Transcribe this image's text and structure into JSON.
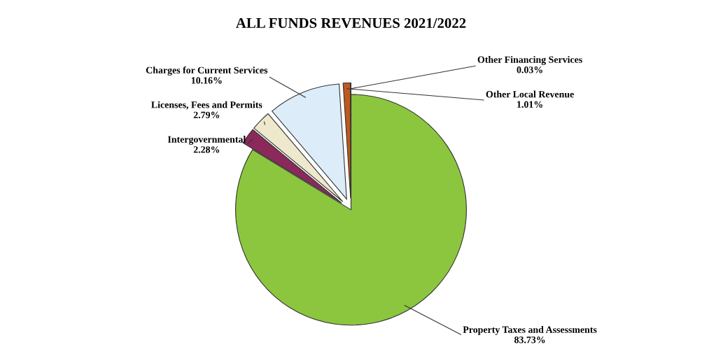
{
  "chart_data": {
    "type": "pie",
    "title": "ALL FUNDS REVENUES 2021/2022",
    "categories": [
      "Property Taxes and Assessments",
      "Intergovernmental",
      "Licenses, Fees and Permits",
      "Charges for Current Services",
      "Other Local Revenue",
      "Other Financing Services"
    ],
    "values": [
      83.73,
      2.28,
      2.79,
      10.16,
      1.01,
      0.03
    ],
    "value_labels": [
      "83.73%",
      "2.28%",
      "2.79%",
      "10.16%",
      "1.01%",
      "0.03%"
    ],
    "colors": [
      "#8cc63f",
      "#8b2a5a",
      "#eee8cc",
      "#dcecf8",
      "#c0581f",
      "#7f7f7f"
    ],
    "legend": false
  }
}
